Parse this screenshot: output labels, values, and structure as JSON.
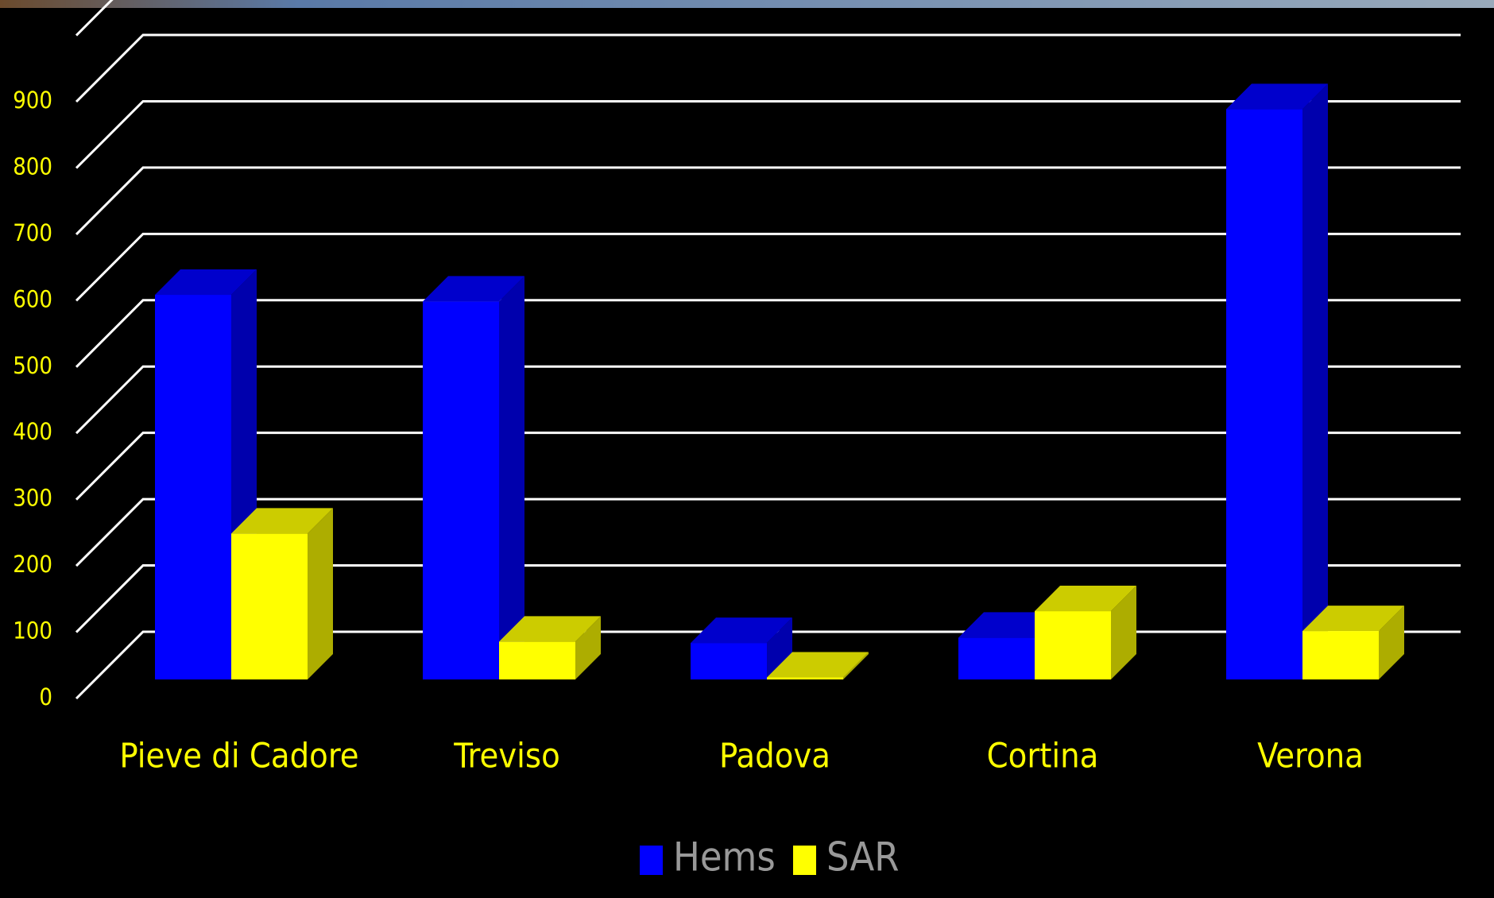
{
  "chart_data": {
    "type": "bar3d",
    "categories": [
      "Pieve di Cadore",
      "Treviso",
      "Padova",
      "Cortina",
      "Verona"
    ],
    "series": [
      {
        "name": "Hems",
        "color": "#0000ff",
        "values": [
          580,
          570,
          55,
          63,
          860
        ]
      },
      {
        "name": "SAR",
        "color": "#ffff00",
        "values": [
          220,
          57,
          3,
          103,
          73
        ]
      }
    ],
    "ylim": [
      0,
      1000
    ],
    "yticks": [
      0,
      100,
      200,
      300,
      400,
      500,
      600,
      700,
      800,
      900
    ],
    "grid": true,
    "legend": "bottom"
  }
}
